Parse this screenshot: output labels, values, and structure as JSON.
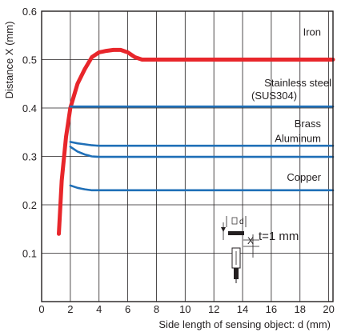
{
  "chart_data": {
    "type": "line",
    "title": "",
    "xlabel": "Side length of sensing object: d (mm)",
    "ylabel": "Distance X (mm)",
    "xlim": [
      0,
      20.3
    ],
    "ylim": [
      0,
      0.6
    ],
    "x_ticks": [
      0,
      2,
      4,
      6,
      8,
      10,
      12,
      14,
      16,
      18,
      20
    ],
    "y_ticks": [
      0.1,
      0.2,
      0.3,
      0.4,
      0.5,
      0.6
    ],
    "x_tick_labels": [
      "0",
      "2",
      "4",
      "6",
      "8",
      "10",
      "12",
      "14",
      "16",
      "18",
      "20"
    ],
    "y_tick_labels": [
      "0.1",
      "0.2",
      "0.3",
      "0.4",
      "0.5",
      "0.6"
    ],
    "grid": true,
    "series": [
      {
        "name": "Iron",
        "color": "#e8262b",
        "x": [
          1.2,
          1.4,
          1.7,
          2.0,
          2.5,
          3.0,
          3.5,
          4.0,
          4.5,
          5.0,
          5.5,
          6.0,
          6.5,
          7.0,
          7.5,
          8.0,
          10,
          12,
          14,
          16,
          18,
          20.3
        ],
        "y": [
          0.14,
          0.25,
          0.34,
          0.4,
          0.45,
          0.48,
          0.505,
          0.515,
          0.518,
          0.52,
          0.52,
          0.515,
          0.505,
          0.5,
          0.5,
          0.5,
          0.5,
          0.5,
          0.5,
          0.5,
          0.5,
          0.5
        ]
      },
      {
        "name": "Stainless steel\n(SUS304)",
        "color": "#1f6fb7",
        "x": [
          2.0,
          4,
          6,
          8,
          10,
          12,
          14,
          16,
          18,
          20.3
        ],
        "y": [
          0.403,
          0.403,
          0.403,
          0.403,
          0.403,
          0.403,
          0.403,
          0.403,
          0.403,
          0.403
        ]
      },
      {
        "name": "Brass",
        "color": "#1f6fb7",
        "x": [
          2.0,
          2.5,
          3.0,
          3.5,
          4.0,
          6,
          8,
          10,
          12,
          14,
          16,
          18,
          20.3
        ],
        "y": [
          0.33,
          0.327,
          0.325,
          0.323,
          0.322,
          0.322,
          0.322,
          0.322,
          0.322,
          0.322,
          0.322,
          0.322,
          0.322
        ]
      },
      {
        "name": "Aluminum",
        "color": "#1f6fb7",
        "x": [
          2.0,
          2.5,
          3.0,
          3.5,
          4.0,
          6,
          8,
          10,
          12,
          14,
          16,
          18,
          20.3
        ],
        "y": [
          0.32,
          0.31,
          0.304,
          0.3,
          0.299,
          0.299,
          0.299,
          0.299,
          0.299,
          0.299,
          0.299,
          0.299,
          0.299
        ]
      },
      {
        "name": "Copper",
        "color": "#1f6fb7",
        "x": [
          2.0,
          2.5,
          3.0,
          3.5,
          4.0,
          6,
          8,
          10,
          12,
          14,
          16,
          18,
          20.3
        ],
        "y": [
          0.24,
          0.235,
          0.232,
          0.23,
          0.23,
          0.23,
          0.23,
          0.23,
          0.23,
          0.23,
          0.23,
          0.23,
          0.23
        ]
      }
    ],
    "annotations": {
      "inset_label": "t=1 mm",
      "inset_d": "d",
      "inset_x": "X"
    }
  }
}
